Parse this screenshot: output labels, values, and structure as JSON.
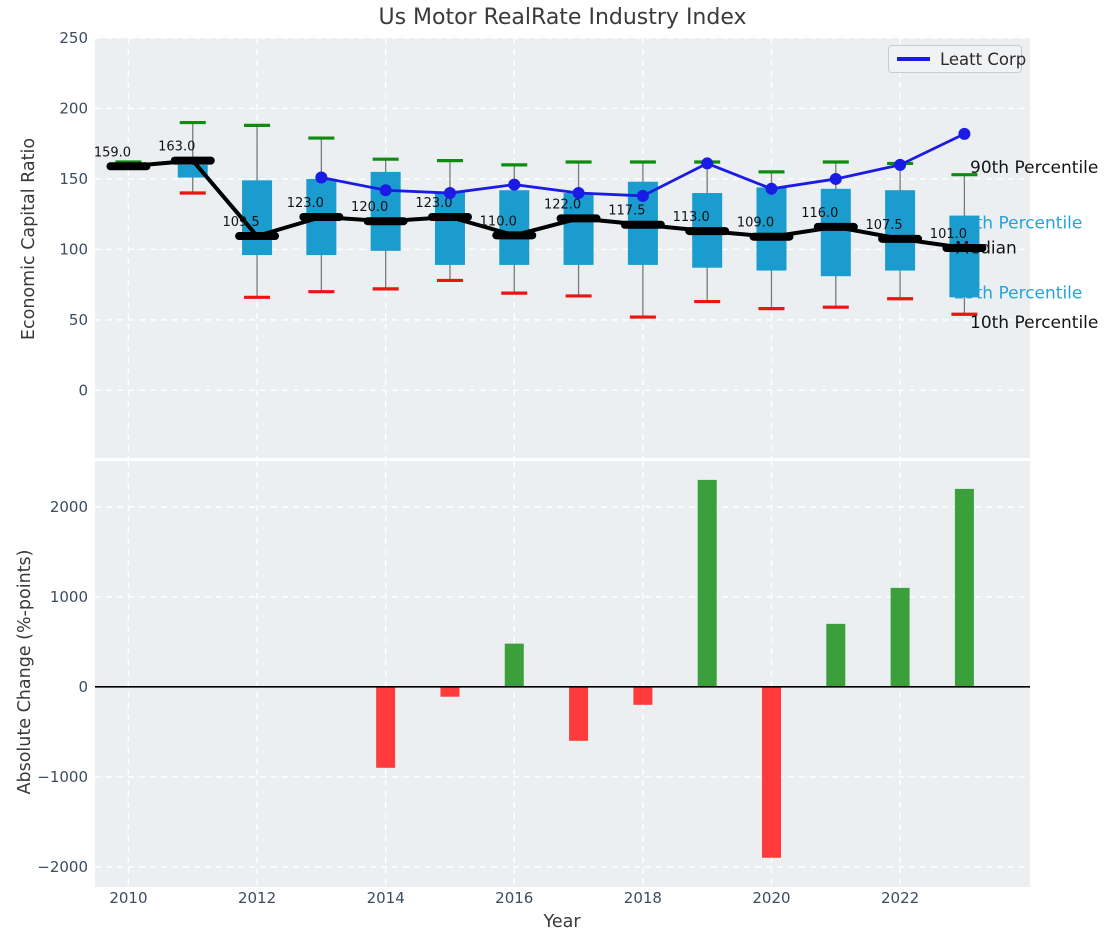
{
  "figure": {
    "title": "Us Motor RealRate Industry Index"
  },
  "colors": {
    "axes_bg": "#eceff1",
    "grid": "#ffffff",
    "tick": "#3b4c63",
    "box": "#1a9cce",
    "cap_high": "#0f8b0f",
    "cap_low": "#ec1313",
    "whisker": "#7a7a7a",
    "median": "#000000",
    "company": "#1b1be6",
    "bar_pos": "#3ba03b",
    "bar_neg": "#ff3b3b",
    "ann_black": "#141414",
    "ann_cyan": "#26a3d5"
  },
  "chart_data": [
    {
      "type": "box-percentile-timeseries",
      "title": "Us Motor RealRate Industry Index",
      "ylabel": "Economic Capital Ratio",
      "ylim": [
        -48,
        250
      ],
      "yticks": [
        0,
        50,
        100,
        150,
        200,
        250
      ],
      "xlim": [
        2009.48,
        2024.02
      ],
      "xticks": [
        2010,
        2012,
        2014,
        2016,
        2018,
        2020,
        2022
      ],
      "grid": true,
      "legend_position": "upper right",
      "boxes": [
        {
          "year": 2010,
          "p90": 162,
          "p75": null,
          "median": 159.0,
          "p25": null,
          "p10": null,
          "label": "159.0"
        },
        {
          "year": 2011,
          "p90": 190,
          "p75": 160,
          "median": 163.0,
          "p25": 151,
          "p10": 140,
          "label": "163.0"
        },
        {
          "year": 2012,
          "p90": 188,
          "p75": 149,
          "median": 109.5,
          "p25": 96,
          "p10": 66,
          "label": "109.5"
        },
        {
          "year": 2013,
          "p90": 179,
          "p75": 150,
          "median": 123.0,
          "p25": 96,
          "p10": 70,
          "label": "123.0"
        },
        {
          "year": 2014,
          "p90": 164,
          "p75": 155,
          "median": 120.0,
          "p25": 99,
          "p10": 72,
          "label": "120.0"
        },
        {
          "year": 2015,
          "p90": 163,
          "p75": 141,
          "median": 123.0,
          "p25": 89,
          "p10": 78,
          "label": "123.0"
        },
        {
          "year": 2016,
          "p90": 160,
          "p75": 142,
          "median": 110.0,
          "p25": 89,
          "p10": 69,
          "label": "110.0"
        },
        {
          "year": 2017,
          "p90": 162,
          "p75": 140,
          "median": 122.0,
          "p25": 89,
          "p10": 67,
          "label": "122.0"
        },
        {
          "year": 2018,
          "p90": 162,
          "p75": 148,
          "median": 117.5,
          "p25": 89,
          "p10": 52,
          "label": "117.5"
        },
        {
          "year": 2019,
          "p90": 162,
          "p75": 140,
          "median": 113.0,
          "p25": 87,
          "p10": 63,
          "label": "113.0"
        },
        {
          "year": 2020,
          "p90": 155,
          "p75": 144,
          "median": 109.0,
          "p25": 85,
          "p10": 58,
          "label": "109.0"
        },
        {
          "year": 2021,
          "p90": 162,
          "p75": 143,
          "median": 116.0,
          "p25": 81,
          "p10": 59,
          "label": "116.0"
        },
        {
          "year": 2022,
          "p90": 161,
          "p75": 142,
          "median": 107.5,
          "p25": 85,
          "p10": 65,
          "label": "107.5"
        },
        {
          "year": 2023,
          "p90": 153,
          "p75": 124,
          "median": 101.0,
          "p25": 66,
          "p10": 54,
          "label": "101.0"
        }
      ],
      "company_line": {
        "name": "Leatt Corp",
        "points": [
          {
            "year": 2013,
            "value": 151
          },
          {
            "year": 2014,
            "value": 142
          },
          {
            "year": 2015,
            "value": 140
          },
          {
            "year": 2016,
            "value": 146
          },
          {
            "year": 2017,
            "value": 140
          },
          {
            "year": 2018,
            "value": 138
          },
          {
            "year": 2019,
            "value": 161
          },
          {
            "year": 2020,
            "value": 143
          },
          {
            "year": 2021,
            "value": 150
          },
          {
            "year": 2022,
            "value": 160
          },
          {
            "year": 2023,
            "value": 182
          }
        ]
      },
      "annotations": [
        {
          "text": "90th Percentile",
          "color": "ann_black",
          "level": 158.5,
          "x": 970
        },
        {
          "text": "75th Percentile",
          "color": "ann_cyan",
          "level": 119.0,
          "x": 954
        },
        {
          "text": "Median",
          "color": "ann_black",
          "level": 101.5,
          "x": 955
        },
        {
          "text": "25th Percentile",
          "color": "ann_cyan",
          "level": 69.5,
          "x": 954
        },
        {
          "text": "10th Percentile",
          "color": "ann_black",
          "level": 48.5,
          "x": 970
        }
      ]
    },
    {
      "type": "bar",
      "ylabel": "Absolute Change (%-points)",
      "xlabel": "Year",
      "ylim": [
        -2225,
        2510
      ],
      "yticks": [
        -2000,
        -1000,
        0,
        1000,
        2000
      ],
      "xlim": [
        2009.48,
        2024.02
      ],
      "xticks": [
        2010,
        2012,
        2014,
        2016,
        2018,
        2020,
        2022
      ],
      "grid": true,
      "zero_line": true,
      "categories": [
        2014,
        2015,
        2016,
        2017,
        2018,
        2019,
        2020,
        2021,
        2022,
        2023
      ],
      "values": [
        -900,
        -110,
        480,
        -600,
        -200,
        2300,
        -1900,
        700,
        1100,
        2200
      ]
    }
  ]
}
